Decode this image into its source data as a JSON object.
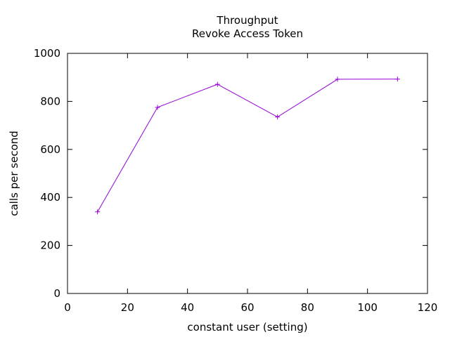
{
  "chart_data": {
    "type": "line",
    "title": "Throughput",
    "subtitle": "Revoke Access Token",
    "xlabel": "constant user (setting)",
    "ylabel": "calls per second",
    "xlim": [
      0,
      120
    ],
    "ylim": [
      0,
      1000
    ],
    "xticks": [
      0,
      20,
      40,
      60,
      80,
      100,
      120
    ],
    "yticks": [
      0,
      200,
      400,
      600,
      800,
      1000
    ],
    "grid": false,
    "series": [
      {
        "color": "#9400d3",
        "marker": "plus",
        "x": [
          10,
          30,
          50,
          70,
          90,
          110
        ],
        "y": [
          340,
          775,
          871,
          735,
          892,
          893
        ]
      }
    ]
  }
}
